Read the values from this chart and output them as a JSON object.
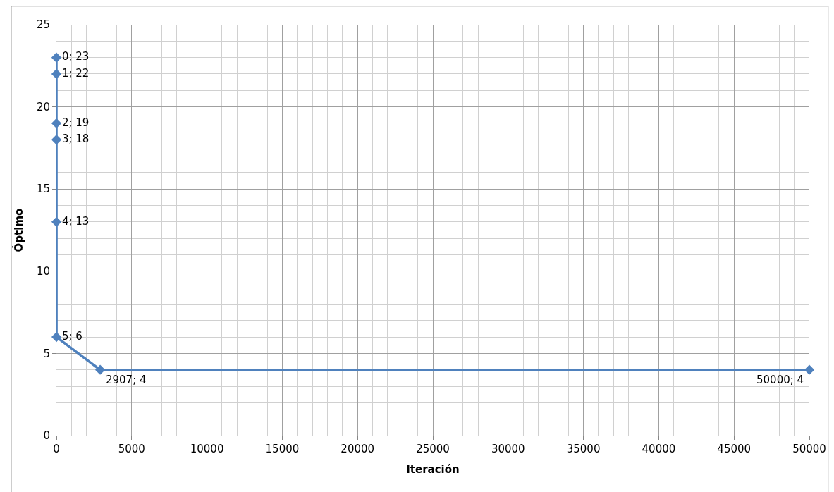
{
  "chart_data": {
    "type": "line",
    "xlabel": "Iteración",
    "ylabel": "Óptimo",
    "x": [
      0,
      1,
      2,
      3,
      4,
      5,
      2907,
      50000
    ],
    "series": [
      {
        "color": "#4f81bd",
        "values": [
          23,
          22,
          19,
          18,
          13,
          6,
          4,
          4
        ],
        "value_labels": [
          "0; 23",
          "1; 22",
          "2; 19",
          "3; 18",
          "4; 13",
          "5; 6",
          "2907; 4",
          "50000; 4"
        ]
      }
    ],
    "xlim": [
      0,
      50000
    ],
    "xticks": [
      0,
      5000,
      10000,
      15000,
      20000,
      25000,
      30000,
      35000,
      40000,
      45000,
      50000
    ],
    "ylim": [
      0,
      25
    ],
    "yticks": [
      0,
      5,
      10,
      15,
      20,
      25
    ],
    "grid": true,
    "marker": "diamond",
    "line_style": "solid"
  }
}
